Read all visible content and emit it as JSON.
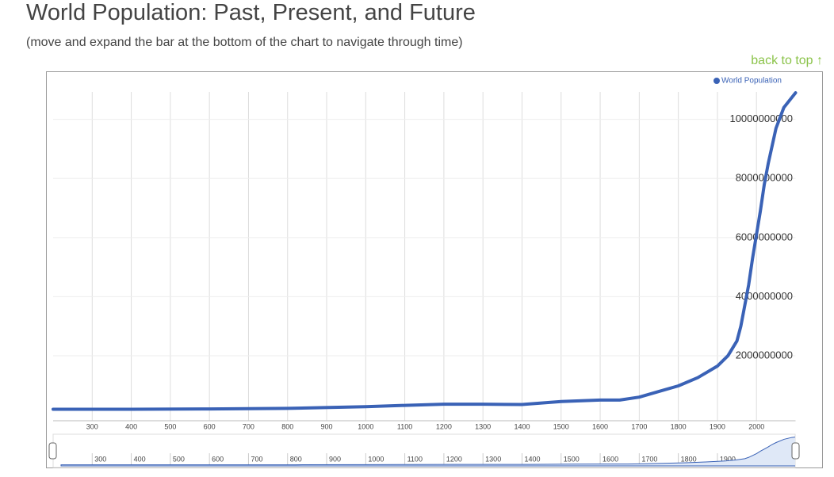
{
  "header": {
    "title": "World Population: Past, Present, and Future",
    "subtitle": "(move and expand the bar at the bottom of the chart to navigate through time)",
    "back_link": "back to top ↑"
  },
  "chart_data": {
    "type": "line",
    "x": [
      200,
      400,
      600,
      800,
      1000,
      1100,
      1200,
      1300,
      1400,
      1500,
      1600,
      1650,
      1700,
      1750,
      1800,
      1850,
      1900,
      1927,
      1950,
      1960,
      1970,
      1980,
      1990,
      2000,
      2010,
      2020,
      2030,
      2050,
      2070,
      2100
    ],
    "series": [
      {
        "name": "World Population",
        "color": "#3a62b6",
        "values": [
          190000000,
          190000000,
          200000000,
          220000000,
          275000000,
          320000000,
          360000000,
          360000000,
          350000000,
          450000000,
          500000000,
          500000000,
          600000000,
          790000000,
          980000000,
          1260000000,
          1650000000,
          2000000000,
          2500000000,
          3000000000,
          3700000000,
          4400000000,
          5300000000,
          6100000000,
          6900000000,
          7800000000,
          8500000000,
          9700000000,
          10400000000,
          10900000000
        ]
      }
    ],
    "xlim": [
      200,
      2100
    ],
    "xticks": [
      300,
      400,
      500,
      600,
      700,
      800,
      900,
      1000,
      1100,
      1200,
      1300,
      1400,
      1500,
      1600,
      1700,
      1800,
      1900,
      2000
    ],
    "ylim": [
      -200000000,
      11600000000
    ],
    "yticks": [
      2000000000,
      4000000000,
      6000000000,
      8000000000,
      10000000000
    ],
    "grid": true,
    "legend": "top-right"
  }
}
